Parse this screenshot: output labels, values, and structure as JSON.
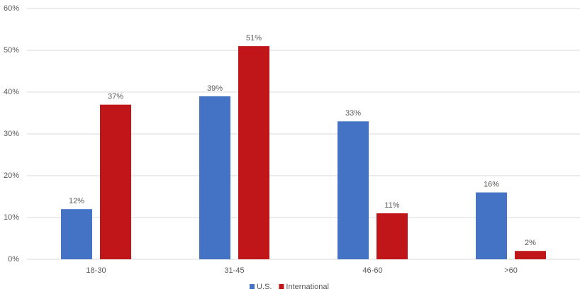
{
  "chart_data": {
    "type": "bar",
    "categories": [
      "18-30",
      "31-45",
      "46-60",
      ">60"
    ],
    "series": [
      {
        "name": "U.S.",
        "color": "#4472c4",
        "values": [
          12,
          39,
          33,
          16
        ],
        "value_labels": [
          "12%",
          "39%",
          "33%",
          "16%"
        ]
      },
      {
        "name": "International",
        "color": "#c0161a",
        "values": [
          37,
          51,
          11,
          2
        ],
        "value_labels": [
          "37%",
          "51%",
          "11%",
          "2%"
        ]
      }
    ],
    "ylim": [
      0,
      60
    ],
    "yticks": [
      {
        "value": 0,
        "label": "0%"
      },
      {
        "value": 10,
        "label": "10%"
      },
      {
        "value": 20,
        "label": "20%"
      },
      {
        "value": 30,
        "label": "30%"
      },
      {
        "value": 40,
        "label": "40%"
      },
      {
        "value": 50,
        "label": "50%"
      },
      {
        "value": 60,
        "label": "60%"
      }
    ],
    "grid": true,
    "legend": "bottom"
  }
}
